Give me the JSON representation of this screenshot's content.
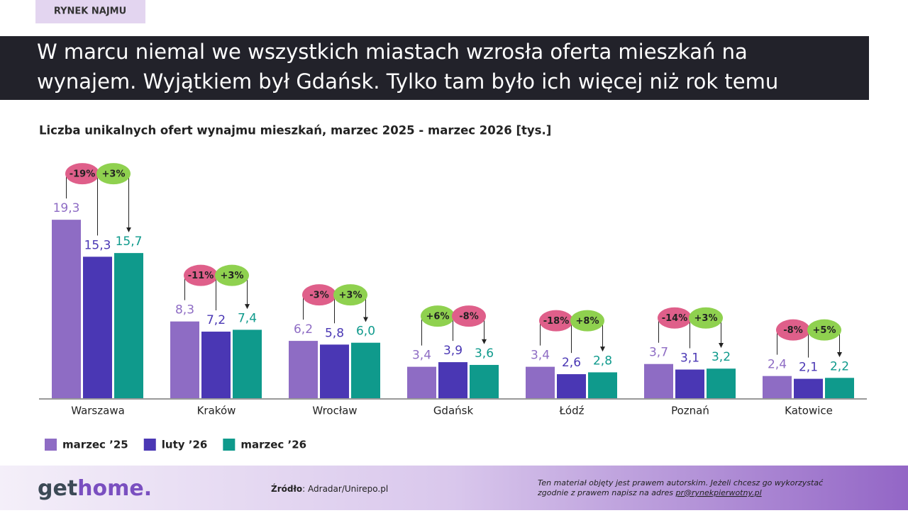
{
  "tag": "RYNEK NAJMU",
  "headline": [
    "W marcu niemal we wszystkich miastach  wzrosła oferta mieszkań na",
    "wynajem. Wyjątkiem był Gdańsk. Tylko tam było ich więcej niż rok temu"
  ],
  "chart_data": {
    "type": "bar",
    "title": "Liczba unikalnych ofert wynajmu mieszkań, marzec 2025 - marzec 2026  [tys.]",
    "categories": [
      "Warszawa",
      "Kraków",
      "Wrocław",
      "Gdańsk",
      "Łódź",
      "Poznań",
      "Katowice"
    ],
    "series": [
      {
        "name": "marzec ’25",
        "color": "#8e6cc4",
        "values": [
          19.3,
          8.3,
          6.2,
          3.4,
          3.4,
          3.7,
          2.4
        ],
        "value_labels": [
          "19,3",
          "8,3",
          "6,2",
          "3,4",
          "3,4",
          "3,7",
          "2,4"
        ]
      },
      {
        "name": "luty ’26",
        "color": "#4a37b4",
        "values": [
          15.3,
          7.2,
          5.8,
          3.9,
          2.6,
          3.1,
          2.1
        ],
        "value_labels": [
          "15,3",
          "7,2",
          "5,8",
          "3,9",
          "2,6",
          "3,1",
          "2,1"
        ]
      },
      {
        "name": "marzec ’26",
        "color": "#0f9a8c",
        "values": [
          15.7,
          7.4,
          6.0,
          3.6,
          2.8,
          3.2,
          2.2
        ],
        "value_labels": [
          "15,7",
          "7,4",
          "6,0",
          "3,6",
          "2,8",
          "3,2",
          "2,2"
        ]
      }
    ],
    "changes_yoy": [
      "-19%",
      "-11%",
      "-3%",
      "+6%",
      "-18%",
      "-14%",
      "-8%"
    ],
    "changes_mom": [
      "+3%",
      "+3%",
      "+3%",
      "-8%",
      "+8%",
      "+3%",
      "+5%"
    ]
  },
  "footer": {
    "logo_a": "get",
    "logo_b": "home.",
    "source_label": "Źródło",
    "source_text": ": Adradar/Unirepo.pl",
    "note_1": "Ten materiał objęty jest prawem autorskim. Jeżeli chcesz go wykorzystać",
    "note_2": "zgodnie z prawem napisz na adres ",
    "note_link": "pr@rynekpierwotny.pl"
  }
}
